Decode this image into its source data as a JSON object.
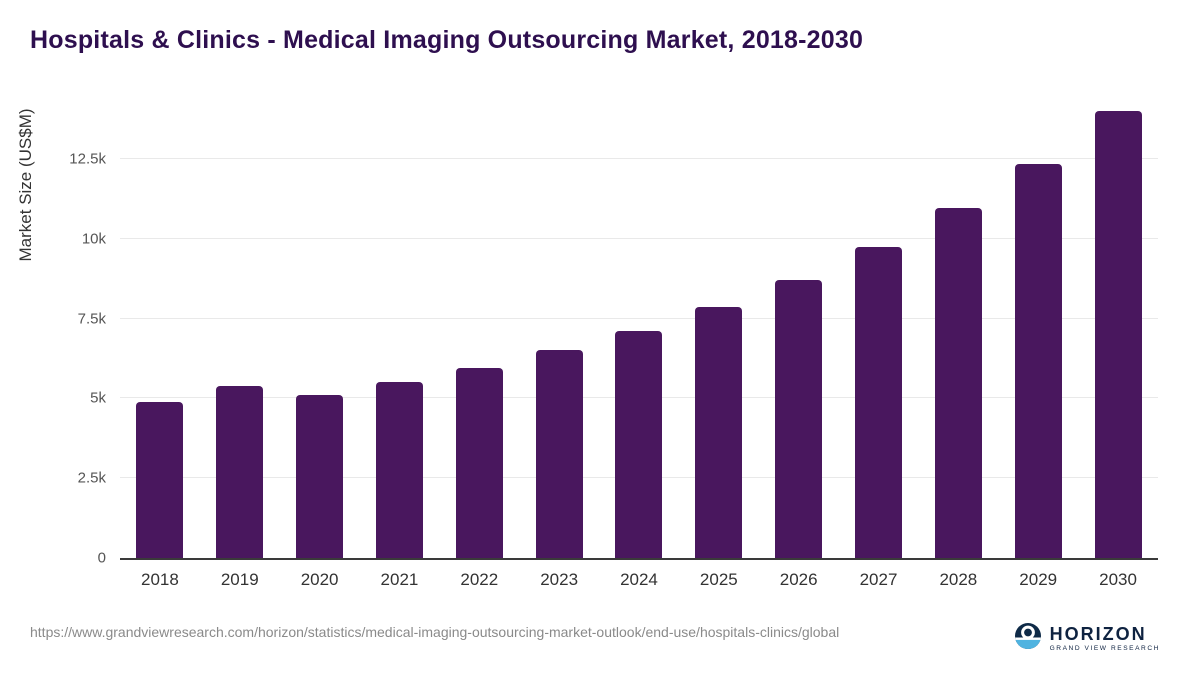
{
  "title": "Hospitals & Clinics - Medical Imaging Outsourcing Market, 2018-2030",
  "chart_data": {
    "type": "bar",
    "categories": [
      "2018",
      "2019",
      "2020",
      "2021",
      "2022",
      "2023",
      "2024",
      "2025",
      "2026",
      "2027",
      "2028",
      "2029",
      "2030"
    ],
    "values": [
      4900,
      5400,
      5100,
      5500,
      5950,
      6500,
      7100,
      7850,
      8700,
      9750,
      10950,
      12350,
      14000
    ],
    "title": "Hospitals & Clinics - Medical Imaging Outsourcing Market, 2018-2030",
    "xlabel": "",
    "ylabel": "Market Size (US$M)",
    "ylim": [
      0,
      14500
    ],
    "yticks": [
      0,
      2500,
      5000,
      7500,
      10000,
      12500
    ],
    "ytick_labels": [
      "0",
      "2.5k",
      "5k",
      "7.5k",
      "10k",
      "12.5k"
    ],
    "grid": "horizontal",
    "legend": "none",
    "bar_color": "#49175E"
  },
  "footer": {
    "source_url": "https://www.grandviewresearch.com/horizon/statistics/medical-imaging-outsourcing-market-outlook/end-use/hospitals-clinics/global",
    "logo_title": "HORIZON",
    "logo_subtitle": "GRAND VIEW RESEARCH"
  },
  "colors": {
    "bar": "#49175E",
    "title": "#2E0F4F",
    "logo_navy": "#0E2A47",
    "logo_blue": "#4FB3E0"
  }
}
